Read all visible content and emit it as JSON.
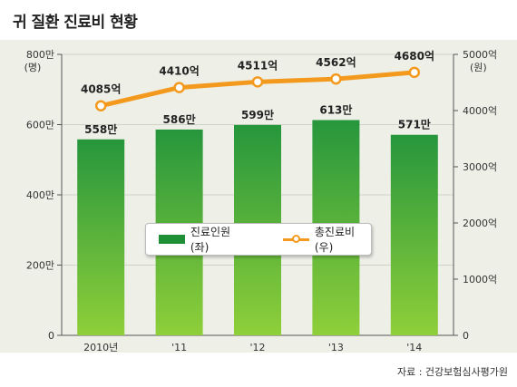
{
  "title": "귀 질환 진료비 현황",
  "source": "자료 : 건강보험심사평가원",
  "legend": {
    "bar_label": "진료인원(좌)",
    "line_label": "총진료비(우)"
  },
  "left_axis": {
    "unit": "(명)",
    "ticks": [
      "0",
      "200만",
      "400만",
      "600만",
      "800만"
    ]
  },
  "right_axis": {
    "unit": "(원)",
    "ticks": [
      "0",
      "1000억",
      "2000억",
      "3000억",
      "4000억",
      "5000억"
    ]
  },
  "colors": {
    "bar_top": "#26963c",
    "bar_bottom": "#8fcf3a",
    "line": "#f39a1e",
    "background": "#eef0e8"
  },
  "chart_data": {
    "type": "bar",
    "categories": [
      "2010년",
      "'11",
      "'12",
      "'13",
      "'14"
    ],
    "series": [
      {
        "name": "진료인원(좌)",
        "type": "bar",
        "axis": "left",
        "values": [
          558,
          586,
          599,
          613,
          571
        ],
        "value_unit": "만",
        "labels": [
          "558만",
          "586만",
          "599만",
          "613만",
          "571만"
        ]
      },
      {
        "name": "총진료비(우)",
        "type": "line",
        "axis": "right",
        "values": [
          4085,
          4410,
          4511,
          4562,
          4680
        ],
        "value_unit": "억",
        "labels": [
          "4085억",
          "4410억",
          "4511억",
          "4562억",
          "4680억"
        ]
      }
    ],
    "title": "귀 질환 진료비 현황",
    "ylabel": "(명)",
    "y2label": "(원)",
    "ylim": [
      0,
      800
    ],
    "y2lim": [
      0,
      5000
    ],
    "grid": "horizontal",
    "legend_position": "center"
  }
}
